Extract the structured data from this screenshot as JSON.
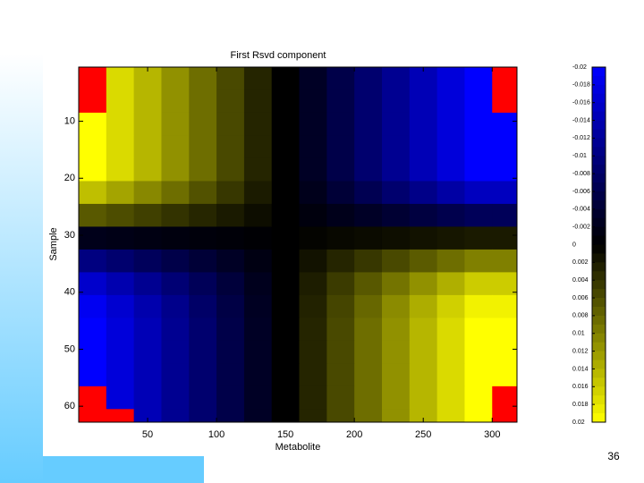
{
  "page_number": "36",
  "chart_data": {
    "type": "heatmap",
    "title": "First Rsvd component",
    "x_label": "Metabolite",
    "y_label": "Sample",
    "xbins": [
      0,
      20,
      40,
      60,
      80,
      100,
      120,
      140,
      160,
      180,
      200,
      220,
      240,
      260,
      280,
      300,
      320
    ],
    "ybins": [
      0.5,
      4.5,
      8.5,
      12.5,
      16.5,
      20.5,
      24.5,
      28.5,
      32.5,
      36.5,
      40.5,
      44.5,
      48.5,
      52.5,
      56.5,
      60.5,
      64.5
    ],
    "xlim": [
      0,
      318
    ],
    "ylim": [
      0.5,
      62.8
    ],
    "xticks": [
      50,
      100,
      150,
      200,
      250,
      300
    ],
    "yticks": [
      10,
      20,
      30,
      40,
      50,
      60
    ],
    "y_reversed": true,
    "z": [
      [
        null,
        0.0171,
        0.0143,
        0.0114,
        0.0086,
        0.0057,
        0.0029,
        0,
        -0.0029,
        -0.0057,
        -0.0086,
        -0.0114,
        -0.0143,
        -0.0171,
        -0.02,
        null
      ],
      [
        null,
        0.0171,
        0.0143,
        0.0114,
        0.0086,
        0.0057,
        0.0029,
        0,
        -0.0029,
        -0.0057,
        -0.0086,
        -0.0114,
        -0.0143,
        -0.0171,
        -0.02,
        null
      ],
      [
        0.02,
        0.0171,
        0.0143,
        0.0114,
        0.0086,
        0.0057,
        0.0029,
        0,
        -0.0029,
        -0.0057,
        -0.0086,
        -0.0114,
        -0.0143,
        -0.0171,
        -0.02,
        -0.02
      ],
      [
        0.02,
        0.0171,
        0.0143,
        0.0114,
        0.0086,
        0.0057,
        0.0029,
        0,
        -0.0029,
        -0.0057,
        -0.0086,
        -0.0114,
        -0.0143,
        -0.0171,
        -0.02,
        -0.02
      ],
      [
        0.02,
        0.0171,
        0.0143,
        0.0114,
        0.0086,
        0.0057,
        0.0029,
        0,
        -0.0029,
        -0.0057,
        -0.0086,
        -0.0114,
        -0.0143,
        -0.0171,
        -0.02,
        -0.02
      ],
      [
        0.015,
        0.0129,
        0.0107,
        0.0086,
        0.0064,
        0.0043,
        0.0021,
        0,
        -0.0021,
        -0.0043,
        -0.0064,
        -0.0086,
        -0.0107,
        -0.0129,
        -0.015,
        -0.015
      ],
      [
        0.007,
        0.006,
        0.005,
        0.004,
        0.003,
        0.002,
        0.001,
        0,
        -0.001,
        -0.002,
        -0.003,
        -0.004,
        -0.005,
        -0.006,
        -0.007,
        -0.007
      ],
      [
        -0.002,
        -0.0017,
        -0.0014,
        -0.0011,
        -0.0009,
        -0.0006,
        -0.0003,
        0,
        0.0003,
        0.0006,
        0.0009,
        0.0011,
        0.0014,
        0.0017,
        0.002,
        0.002
      ],
      [
        -0.01,
        -0.0086,
        -0.0071,
        -0.0057,
        -0.0043,
        -0.0029,
        -0.0014,
        0,
        0.0014,
        0.0029,
        0.0043,
        0.0057,
        0.0071,
        0.0086,
        0.01,
        0.01
      ],
      [
        -0.016,
        -0.0137,
        -0.0114,
        -0.0091,
        -0.0069,
        -0.0046,
        -0.0023,
        0,
        0.0023,
        0.0046,
        0.0069,
        0.0091,
        0.0114,
        0.0137,
        0.016,
        0.016
      ],
      [
        -0.019,
        -0.0163,
        -0.0136,
        -0.0109,
        -0.0081,
        -0.0054,
        -0.0027,
        0,
        0.0027,
        0.0054,
        0.0081,
        0.0109,
        0.0136,
        0.0163,
        0.019,
        0.019
      ],
      [
        -0.02,
        -0.0171,
        -0.0143,
        -0.0114,
        -0.0086,
        -0.0057,
        -0.0029,
        0,
        0.0029,
        0.0057,
        0.0086,
        0.0114,
        0.0143,
        0.0171,
        0.02,
        0.02
      ],
      [
        -0.02,
        -0.0171,
        -0.0143,
        -0.0114,
        -0.0086,
        -0.0057,
        -0.0029,
        0,
        0.0029,
        0.0057,
        0.0086,
        0.0114,
        0.0143,
        0.0171,
        0.02,
        0.02
      ],
      [
        -0.02,
        -0.0171,
        -0.0143,
        -0.0114,
        -0.0086,
        -0.0057,
        -0.0029,
        0,
        0.0029,
        0.0057,
        0.0086,
        0.0114,
        0.0143,
        0.0171,
        0.02,
        0.02
      ],
      [
        null,
        -0.0171,
        -0.0143,
        -0.0114,
        -0.0086,
        -0.0057,
        -0.0029,
        0,
        0.0029,
        0.0057,
        0.0086,
        0.0114,
        0.0143,
        0.0171,
        0.02,
        null
      ],
      [
        null,
        null,
        -0.0143,
        -0.0114,
        -0.0086,
        -0.0057,
        -0.0029,
        0,
        0.0029,
        0.0057,
        0.0086,
        0.0114,
        0.0143,
        0.0171,
        0.02,
        null
      ]
    ],
    "null_color": "#ff0000",
    "negative_color": "#0000ff",
    "positive_color": "#ffff00",
    "clim": [
      -0.02,
      0.02
    ],
    "cticks": [
      -0.02,
      -0.018,
      -0.016,
      -0.014,
      -0.012,
      -0.01,
      -0.008,
      -0.006,
      -0.004,
      -0.002,
      0,
      0.002,
      0.004,
      0.006,
      0.008,
      0.01,
      0.012,
      0.014,
      0.016,
      0.018,
      0.02
    ]
  }
}
